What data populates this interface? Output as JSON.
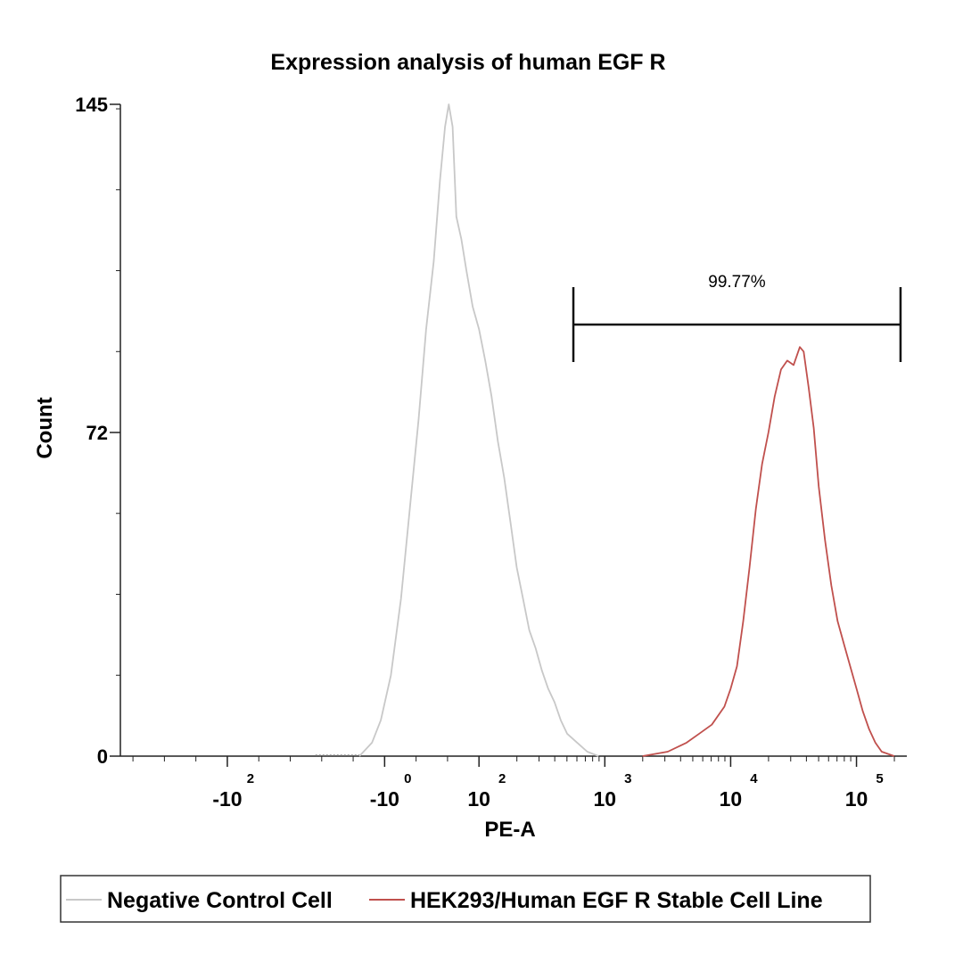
{
  "chart_data": {
    "type": "histogram",
    "title": "Expression analysis of human EGF R",
    "xlabel": "PE-A",
    "ylabel": "Count",
    "ylim": [
      0,
      145
    ],
    "yticks": [
      {
        "value": 0,
        "label": "0"
      },
      {
        "value": 72,
        "label": "72"
      },
      {
        "value": 145,
        "label": "145"
      }
    ],
    "xaxis_scale": "biexponential (log decades)",
    "xticks": [
      {
        "base": "-10",
        "exp": "2",
        "decade": -2.0
      },
      {
        "base": "-10",
        "exp": "0",
        "decade": -0.75
      },
      {
        "base": "10",
        "exp": "2",
        "decade": 0.0
      },
      {
        "base": "10",
        "exp": "3",
        "decade": 1.0
      },
      {
        "base": "10",
        "exp": "4",
        "decade": 2.0
      },
      {
        "base": "10",
        "exp": "5",
        "decade": 3.0
      }
    ],
    "xlim_decade": [
      -2.85,
      3.4
    ],
    "gate": {
      "label": "99.77%",
      "x_start_decade": 0.75,
      "x_end_decade": 3.35,
      "count_level": 96
    },
    "series": [
      {
        "name": "Negative Control Cell",
        "color": "#c8c8c8",
        "points": [
          [
            -0.95,
            0
          ],
          [
            -0.85,
            3
          ],
          [
            -0.78,
            8
          ],
          [
            -0.7,
            18
          ],
          [
            -0.62,
            35
          ],
          [
            -0.55,
            55
          ],
          [
            -0.48,
            75
          ],
          [
            -0.42,
            95
          ],
          [
            -0.36,
            110
          ],
          [
            -0.31,
            128
          ],
          [
            -0.27,
            140
          ],
          [
            -0.24,
            145
          ],
          [
            -0.21,
            140
          ],
          [
            -0.18,
            120
          ],
          [
            -0.14,
            115
          ],
          [
            -0.1,
            108
          ],
          [
            -0.05,
            100
          ],
          [
            0.0,
            95
          ],
          [
            0.05,
            88
          ],
          [
            0.1,
            80
          ],
          [
            0.15,
            70
          ],
          [
            0.2,
            62
          ],
          [
            0.25,
            52
          ],
          [
            0.3,
            42
          ],
          [
            0.35,
            35
          ],
          [
            0.4,
            28
          ],
          [
            0.45,
            24
          ],
          [
            0.5,
            19
          ],
          [
            0.55,
            15
          ],
          [
            0.6,
            12
          ],
          [
            0.65,
            8
          ],
          [
            0.7,
            5
          ],
          [
            0.78,
            3
          ],
          [
            0.86,
            1
          ],
          [
            0.95,
            0
          ]
        ]
      },
      {
        "name": "HEK293/Human EGF R Stable Cell Line",
        "color": "#c0504d",
        "points": [
          [
            1.3,
            0
          ],
          [
            1.5,
            1
          ],
          [
            1.65,
            3
          ],
          [
            1.75,
            5
          ],
          [
            1.85,
            7
          ],
          [
            1.95,
            11
          ],
          [
            2.0,
            15
          ],
          [
            2.05,
            20
          ],
          [
            2.1,
            30
          ],
          [
            2.15,
            42
          ],
          [
            2.2,
            55
          ],
          [
            2.25,
            65
          ],
          [
            2.3,
            72
          ],
          [
            2.35,
            80
          ],
          [
            2.4,
            86
          ],
          [
            2.45,
            88
          ],
          [
            2.5,
            87
          ],
          [
            2.55,
            91
          ],
          [
            2.58,
            90
          ],
          [
            2.62,
            82
          ],
          [
            2.66,
            73
          ],
          [
            2.7,
            60
          ],
          [
            2.75,
            48
          ],
          [
            2.8,
            38
          ],
          [
            2.85,
            30
          ],
          [
            2.9,
            25
          ],
          [
            2.95,
            20
          ],
          [
            3.0,
            15
          ],
          [
            3.05,
            10
          ],
          [
            3.1,
            6
          ],
          [
            3.15,
            3
          ],
          [
            3.2,
            1
          ],
          [
            3.3,
            0
          ]
        ]
      }
    ]
  }
}
